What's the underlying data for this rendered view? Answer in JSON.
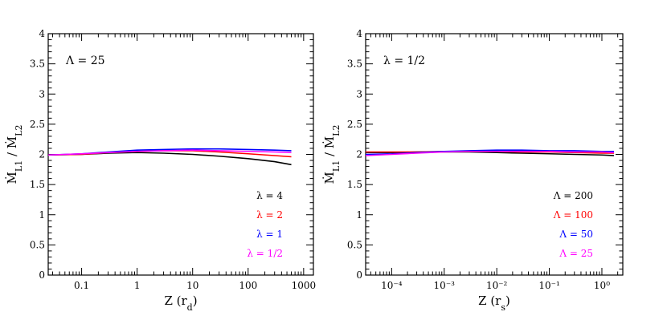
{
  "chart_data": [
    {
      "type": "line",
      "xscale": "log",
      "xlim": [
        0.025,
        1500
      ],
      "ylim": [
        0,
        4
      ],
      "xlabel": "Z (r_d)",
      "ylabel": "Ṁ_L1 / Ṁ_L2",
      "annotation": "Λ = 25",
      "legend_position": "bottom-right",
      "x_ticks": [
        {
          "value": 0.1,
          "label": "0.1"
        },
        {
          "value": 1,
          "label": "1"
        },
        {
          "value": 10,
          "label": "10"
        },
        {
          "value": 100,
          "label": "100"
        },
        {
          "value": 1000,
          "label": "1000"
        }
      ],
      "y_ticks": [
        {
          "value": 0,
          "label": "0"
        },
        {
          "value": 0.5,
          "label": "0.5"
        },
        {
          "value": 1,
          "label": "1"
        },
        {
          "value": 1.5,
          "label": "1.5"
        },
        {
          "value": 2,
          "label": "2"
        },
        {
          "value": 2.5,
          "label": "2.5"
        },
        {
          "value": 3,
          "label": "3"
        },
        {
          "value": 3.5,
          "label": "3.5"
        },
        {
          "value": 4,
          "label": "4"
        }
      ],
      "series": [
        {
          "name": "λ = 4",
          "color": "#000000",
          "x": [
            0.025,
            0.1,
            0.3,
            1,
            3,
            10,
            30,
            100,
            300,
            600
          ],
          "y": [
            1.99,
            2.0,
            2.02,
            2.03,
            2.02,
            2.0,
            1.97,
            1.93,
            1.88,
            1.83
          ]
        },
        {
          "name": "λ = 2",
          "color": "#ff0000",
          "x": [
            0.025,
            0.1,
            0.3,
            1,
            3,
            10,
            30,
            100,
            300,
            600
          ],
          "y": [
            1.99,
            2.0,
            2.03,
            2.05,
            2.06,
            2.06,
            2.04,
            2.01,
            1.98,
            1.96
          ]
        },
        {
          "name": "λ = 1",
          "color": "#0000ff",
          "x": [
            0.025,
            0.1,
            0.3,
            1,
            3,
            10,
            30,
            100,
            300,
            600
          ],
          "y": [
            1.99,
            2.01,
            2.04,
            2.07,
            2.08,
            2.09,
            2.09,
            2.08,
            2.07,
            2.06
          ]
        },
        {
          "name": "λ = 1/2",
          "color": "#ff00ff",
          "x": [
            0.025,
            0.1,
            0.3,
            1,
            3,
            10,
            30,
            100,
            300,
            600
          ],
          "y": [
            1.99,
            2.01,
            2.03,
            2.05,
            2.06,
            2.07,
            2.06,
            2.05,
            2.04,
            2.03
          ]
        }
      ]
    },
    {
      "type": "line",
      "xscale": "log",
      "xlim": [
        3.2e-05,
        2.5
      ],
      "ylim": [
        0,
        4
      ],
      "xlabel": "Z (r_s)",
      "ylabel": "Ṁ_L1 / Ṁ_L2",
      "annotation": "λ = 1/2",
      "legend_position": "bottom-right",
      "x_ticks": [
        {
          "value": 0.0001,
          "label": "10⁻⁴"
        },
        {
          "value": 0.001,
          "label": "10⁻³"
        },
        {
          "value": 0.01,
          "label": "10⁻²"
        },
        {
          "value": 0.1,
          "label": "10⁻¹"
        },
        {
          "value": 1,
          "label": "10⁰"
        }
      ],
      "y_ticks": [
        {
          "value": 0,
          "label": "0"
        },
        {
          "value": 0.5,
          "label": "0.5"
        },
        {
          "value": 1,
          "label": "1"
        },
        {
          "value": 1.5,
          "label": "1.5"
        },
        {
          "value": 2,
          "label": "2"
        },
        {
          "value": 2.5,
          "label": "2.5"
        },
        {
          "value": 3,
          "label": "3"
        },
        {
          "value": 3.5,
          "label": "3.5"
        },
        {
          "value": 4,
          "label": "4"
        }
      ],
      "series": [
        {
          "name": "Λ = 200",
          "color": "#000000",
          "x": [
            3.2e-05,
            0.0001,
            0.0003,
            0.001,
            0.003,
            0.01,
            0.03,
            0.1,
            0.3,
            1,
            1.7
          ],
          "y": [
            2.03,
            2.03,
            2.04,
            2.04,
            2.04,
            2.03,
            2.02,
            2.01,
            2.0,
            1.99,
            1.98
          ]
        },
        {
          "name": "Λ = 100",
          "color": "#ff0000",
          "x": [
            3.2e-05,
            0.0001,
            0.0003,
            0.001,
            0.003,
            0.01,
            0.03,
            0.1,
            0.3,
            1,
            1.7
          ],
          "y": [
            2.04,
            2.04,
            2.04,
            2.05,
            2.05,
            2.05,
            2.04,
            2.04,
            2.03,
            2.02,
            2.02
          ]
        },
        {
          "name": "Λ = 50",
          "color": "#0000ff",
          "x": [
            3.2e-05,
            0.0001,
            0.0003,
            0.001,
            0.003,
            0.01,
            0.03,
            0.1,
            0.3,
            1,
            1.7
          ],
          "y": [
            2.0,
            2.01,
            2.03,
            2.05,
            2.06,
            2.07,
            2.07,
            2.06,
            2.06,
            2.05,
            2.05
          ]
        },
        {
          "name": "Λ = 25",
          "color": "#ff00ff",
          "x": [
            3.2e-05,
            0.0001,
            0.0003,
            0.001,
            0.003,
            0.01,
            0.03,
            0.1,
            0.3,
            1,
            1.7
          ],
          "y": [
            1.98,
            2.0,
            2.02,
            2.04,
            2.05,
            2.05,
            2.05,
            2.05,
            2.04,
            2.04,
            2.03
          ]
        }
      ]
    }
  ]
}
